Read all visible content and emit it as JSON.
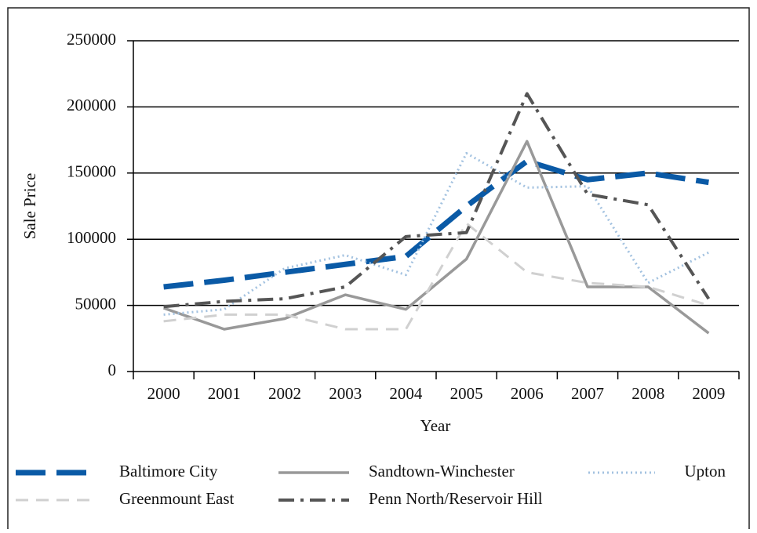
{
  "chart_data": {
    "type": "line",
    "x_label": "Year",
    "y_label": "Sale Price",
    "categories": [
      "2000",
      "2001",
      "2002",
      "2003",
      "2004",
      "2005",
      "2006",
      "2007",
      "2008",
      "2009"
    ],
    "ylim": [
      0,
      250000
    ],
    "yticks": [
      0,
      50000,
      100000,
      150000,
      200000,
      250000
    ],
    "grid": true,
    "series": [
      {
        "name": "Baltimore City",
        "color": "#0a5aa6",
        "style": "long-dash",
        "values": [
          64000,
          69000,
          75000,
          81000,
          87000,
          125000,
          159000,
          145000,
          150000,
          143000
        ]
      },
      {
        "name": "Sandtown-Winchester",
        "color": "#999999",
        "style": "solid",
        "values": [
          48000,
          32000,
          40000,
          58000,
          47000,
          85000,
          174000,
          64000,
          64000,
          29000
        ]
      },
      {
        "name": "Upton",
        "color": "#a3c2e0",
        "style": "dotted",
        "values": [
          43000,
          47000,
          78000,
          88000,
          73000,
          165000,
          139000,
          140000,
          67000,
          90000
        ]
      },
      {
        "name": "Greenmount East",
        "color": "#d0d0d0",
        "style": "dash",
        "values": [
          38000,
          43000,
          43000,
          32000,
          32000,
          112000,
          75000,
          67000,
          64000,
          50000
        ]
      },
      {
        "name": "Penn North/Reservoir Hill",
        "color": "#555555",
        "style": "dash-dot",
        "values": [
          49000,
          53000,
          55000,
          64000,
          102000,
          105000,
          210000,
          134000,
          126000,
          55000
        ]
      }
    ]
  }
}
